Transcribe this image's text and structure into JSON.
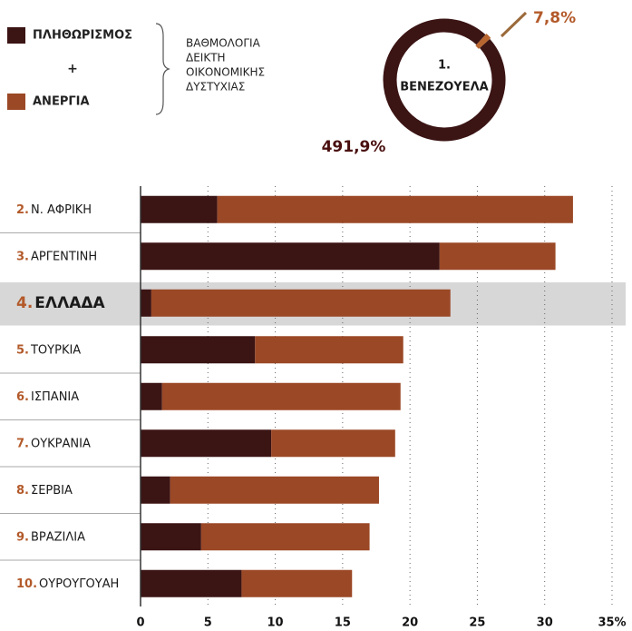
{
  "chart_data": [
    {
      "type": "stacked-bar-horizontal",
      "ranks": [
        "2.",
        "3.",
        "4.",
        "5.",
        "6.",
        "7.",
        "8.",
        "9.",
        "10."
      ],
      "categories": [
        "Ν. ΑΦΡΙΚΗ",
        "ΑΡΓΕΝΤΙΝΗ",
        "ΕΛΛΑΔΑ",
        "ΤΟΥΡΚΙΑ",
        "ΙΣΠΑΝΙΑ",
        "ΟΥΚΡΑΝΙΑ",
        "ΣΕΡΒΙΑ",
        "ΒΡΑΖΙΛΙΑ",
        "ΟΥΡΟΥΓΟΥΑΗ"
      ],
      "series": [
        {
          "name": "ΠΛΗΘΩΡΙΣΜΟΣ",
          "color": "#3b1414",
          "values": [
            5.7,
            22.2,
            0.8,
            8.5,
            1.6,
            9.7,
            2.2,
            4.5,
            7.5
          ]
        },
        {
          "name": "ΑΝΕΡΓΙΑ",
          "color": "#9b4826",
          "values": [
            26.4,
            8.6,
            22.2,
            11.0,
            17.7,
            9.2,
            15.5,
            12.5,
            8.2
          ]
        }
      ],
      "legend_joiner": "+",
      "note": [
        "ΒΑΘΜΟΛΟΓΙΑ",
        "ΔΕΙΚΤΗ",
        "ΟΙΚΟΝΟΜΙΚΗΣ",
        "ΔΥΣΤΥΧΙΑΣ"
      ],
      "highlight_index": 2,
      "xlim": [
        0,
        35
      ],
      "xticks": [
        0,
        5,
        10,
        15,
        20,
        25,
        30,
        {
          "value": 35,
          "label": "35%"
        }
      ],
      "grid": true
    },
    {
      "type": "donut",
      "rank": "1.",
      "category": "ΒΕΝΕΖΟΥΕΛΑ",
      "values": [
        491.9,
        7.8
      ],
      "value_labels": [
        "491,9%",
        "7,8%"
      ],
      "colors": [
        "#3b1414",
        "#b8652f"
      ]
    }
  ]
}
